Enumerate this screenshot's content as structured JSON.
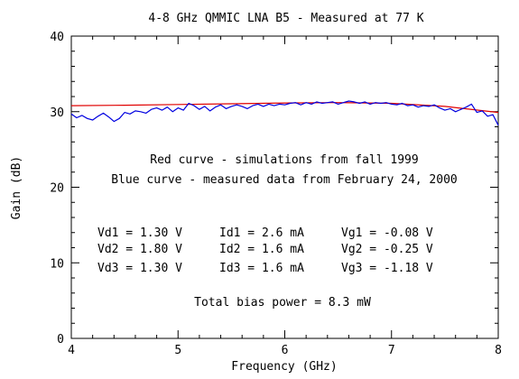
{
  "chart_data": {
    "type": "line",
    "title": "4-8 GHz QMMIC LNA B5 - Measured at 77 K",
    "xlabel": "Frequency (GHz)",
    "ylabel": "Gain (dB)",
    "xlim": [
      4,
      8
    ],
    "ylim": [
      0,
      40
    ],
    "x_major_ticks": [
      4,
      5,
      6,
      7,
      8
    ],
    "y_major_ticks": [
      0,
      10,
      20,
      30,
      40
    ],
    "x_minor_step": 0.2,
    "y_minor_step": 2,
    "grid": false,
    "legend": "none",
    "series": [
      {
        "color": "#e00000",
        "x": [
          4.0,
          4.5,
          5.0,
          5.5,
          6.0,
          6.5,
          7.0,
          7.5,
          8.0
        ],
        "y": [
          30.8,
          30.85,
          30.95,
          31.05,
          31.15,
          31.2,
          31.1,
          30.7,
          29.9
        ]
      },
      {
        "color": "#0000e0",
        "x": [
          4.0,
          4.05,
          4.1,
          4.15,
          4.2,
          4.25,
          4.3,
          4.35,
          4.4,
          4.45,
          4.5,
          4.55,
          4.6,
          4.65,
          4.7,
          4.75,
          4.8,
          4.85,
          4.9,
          4.95,
          5.0,
          5.05,
          5.1,
          5.15,
          5.2,
          5.25,
          5.3,
          5.35,
          5.4,
          5.45,
          5.5,
          5.55,
          5.6,
          5.65,
          5.7,
          5.75,
          5.8,
          5.85,
          5.9,
          5.95,
          6.0,
          6.05,
          6.1,
          6.15,
          6.2,
          6.25,
          6.3,
          6.35,
          6.4,
          6.45,
          6.5,
          6.55,
          6.6,
          6.65,
          6.7,
          6.75,
          6.8,
          6.85,
          6.9,
          6.95,
          7.0,
          7.05,
          7.1,
          7.15,
          7.2,
          7.25,
          7.3,
          7.35,
          7.4,
          7.45,
          7.5,
          7.55,
          7.6,
          7.65,
          7.7,
          7.75,
          7.8,
          7.85,
          7.9,
          7.95,
          8.0
        ],
        "y": [
          29.7,
          29.2,
          29.5,
          29.1,
          28.9,
          29.4,
          29.8,
          29.3,
          28.7,
          29.1,
          29.9,
          29.7,
          30.1,
          30.0,
          29.8,
          30.3,
          30.5,
          30.2,
          30.6,
          30.0,
          30.5,
          30.2,
          31.1,
          30.8,
          30.3,
          30.7,
          30.1,
          30.6,
          30.9,
          30.4,
          30.7,
          30.9,
          30.7,
          30.4,
          30.8,
          31.0,
          30.7,
          31.0,
          30.8,
          31.0,
          30.9,
          31.1,
          31.2,
          30.9,
          31.2,
          31.0,
          31.3,
          31.1,
          31.2,
          31.3,
          31.0,
          31.2,
          31.4,
          31.3,
          31.1,
          31.3,
          31.0,
          31.2,
          31.1,
          31.2,
          31.0,
          30.9,
          31.1,
          30.8,
          30.9,
          30.6,
          30.8,
          30.7,
          30.9,
          30.5,
          30.2,
          30.4,
          30.0,
          30.3,
          30.6,
          31.0,
          29.9,
          30.1,
          29.4,
          29.6,
          28.2
        ]
      }
    ],
    "annotations": {
      "curve_notes": [
        "Red curve - simulations from fall 1999",
        "Blue curve - measured data from February 24, 2000"
      ],
      "bias_rows": [
        [
          "Vd1 = 1.30 V",
          "Id1 = 2.6 mA",
          "Vg1 = -0.08 V"
        ],
        [
          "Vd2 = 1.80 V",
          "Id2 = 1.6 mA",
          "Vg2 = -0.25 V"
        ],
        [
          "Vd3 = 1.30 V",
          "Id3 = 1.6 mA",
          "Vg3 = -1.18 V"
        ]
      ],
      "total_power": "Total bias power = 8.3 mW"
    }
  }
}
